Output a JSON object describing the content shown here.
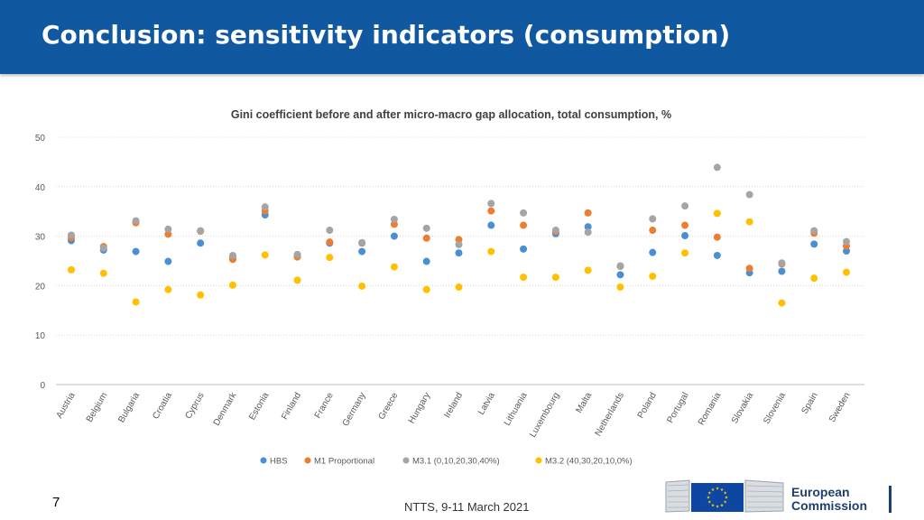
{
  "slide": {
    "title": "Conclusion: sensitivity indicators (consumption)",
    "page_number": "7",
    "footer": "NTTS, 9-11 March 2021"
  },
  "logo": {
    "line1": "European",
    "line2": "Commission",
    "flag_color": "#0e47a1",
    "star_color": "#ffcc00"
  },
  "chart_data": {
    "type": "scatter",
    "title": "Gini coefficient before and after micro-macro gap allocation, total consumption, %",
    "xlabel": "",
    "ylabel": "",
    "ylim": [
      0,
      50
    ],
    "yticks": [
      0,
      10,
      20,
      30,
      40,
      50
    ],
    "grid": true,
    "legend_position": "bottom",
    "categories": [
      "Austria",
      "Belgium",
      "Bulgaria",
      "Croatia",
      "Cyprus",
      "Denmark",
      "Estonia",
      "Finland",
      "France",
      "Germany",
      "Greece",
      "Hungary",
      "Ireland",
      "Latvia",
      "Lithuania",
      "Luxembourg",
      "Malta",
      "Netherlands",
      "Poland",
      "Portugal",
      "Romania",
      "Slovakia",
      "Slovenia",
      "Spain",
      "Sweden"
    ],
    "series": [
      {
        "name": "HBS",
        "color": "#4a8fd4",
        "values": [
          29.1,
          27.2,
          26.9,
          24.9,
          28.6,
          25.9,
          34.3,
          25.9,
          28.6,
          26.9,
          30.0,
          24.9,
          26.6,
          32.2,
          27.4,
          30.5,
          31.9,
          22.2,
          26.7,
          30.1,
          26.1,
          22.6,
          22.9,
          28.4,
          27.0
        ]
      },
      {
        "name": "M1 Proportional",
        "color": "#ed7d31",
        "values": [
          29.7,
          27.9,
          32.7,
          30.4,
          31.0,
          25.3,
          35.1,
          25.8,
          28.8,
          28.6,
          32.4,
          29.6,
          29.3,
          35.1,
          32.2,
          30.9,
          34.7,
          23.9,
          31.2,
          32.2,
          29.8,
          23.5,
          24.4,
          30.6,
          28.0
        ]
      },
      {
        "name": "M3.1 (0,10,20,30,40%)",
        "color": "#a5a5a5",
        "values": [
          30.2,
          27.6,
          33.1,
          31.4,
          31.1,
          26.1,
          35.9,
          26.3,
          31.2,
          28.7,
          33.4,
          31.6,
          28.3,
          36.6,
          34.7,
          31.2,
          30.8,
          24.0,
          33.5,
          36.1,
          43.9,
          38.4,
          24.6,
          31.1,
          28.9
        ]
      },
      {
        "name": "M3.2 (40,30,20,10,0%)",
        "color": "#ffc000",
        "values": [
          23.2,
          22.5,
          16.7,
          19.2,
          18.1,
          20.1,
          26.2,
          21.1,
          25.7,
          19.9,
          23.8,
          19.2,
          19.7,
          26.9,
          21.7,
          21.7,
          23.1,
          19.7,
          21.9,
          26.6,
          34.6,
          32.9,
          16.5,
          21.5,
          22.7
        ]
      }
    ]
  }
}
